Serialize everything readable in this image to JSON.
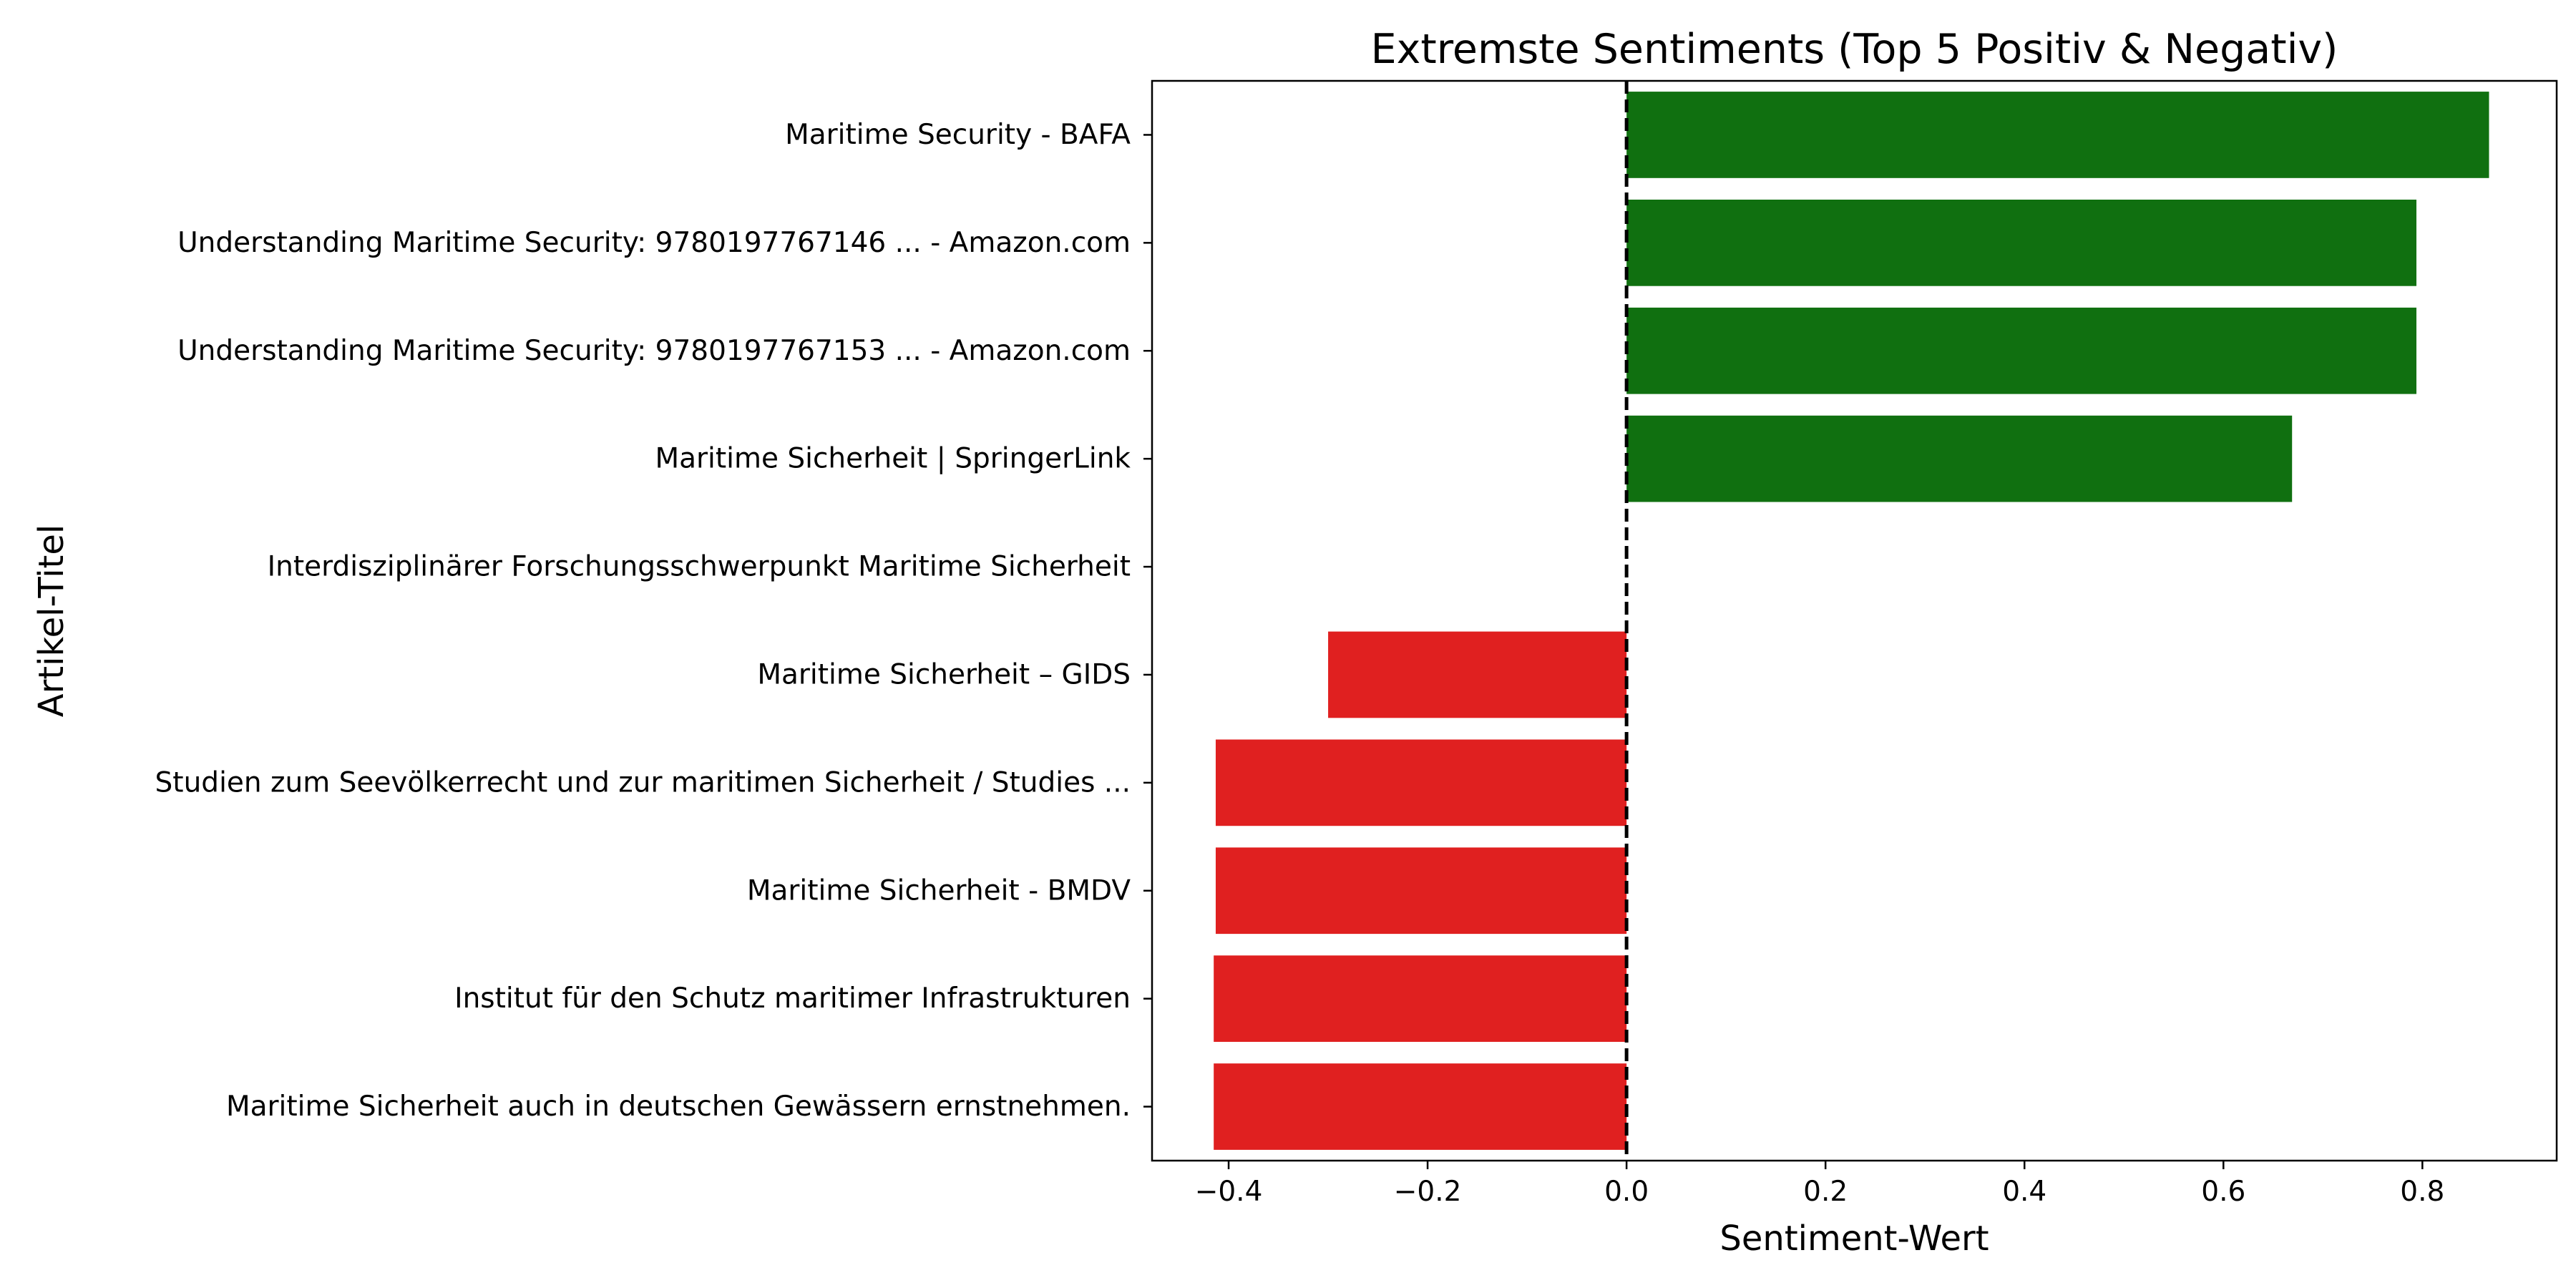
{
  "chart_data": {
    "type": "bar",
    "orientation": "horizontal",
    "title": "Extremste Sentiments (Top 5 Positiv & Negativ)",
    "xlabel": "Sentiment-Wert",
    "ylabel": "Artikel-Titel",
    "xlim": [
      -0.477,
      0.935
    ],
    "x_ticks": [
      -0.4,
      -0.2,
      0.0,
      0.2,
      0.4,
      0.6,
      0.8
    ],
    "x_tick_labels": [
      "−0.4",
      "−0.2",
      "0.0",
      "0.2",
      "0.4",
      "0.6",
      "0.8"
    ],
    "reference_line": 0,
    "grid": false,
    "legend": "none",
    "colors": {
      "positive": "#107010",
      "negative": "#e02020",
      "reference": "#000000"
    },
    "categories": [
      "Maritime Security - BAFA",
      "Understanding Maritime Security: 9780197767146 ... - Amazon.com",
      "Understanding Maritime Security: 9780197767153 ... - Amazon.com",
      "Maritime Sicherheit | SpringerLink",
      "Interdisziplinärer Forschungsschwerpunkt Maritime Sicherheit",
      "Maritime Sicherheit – GIDS",
      "Studien zum Seevölkerrecht und zur maritimen Sicherheit / Studies ...",
      "Maritime Sicherheit - BMDV",
      "Institut für den Schutz maritimer Infrastrukturen",
      "Maritime Sicherheit auch in deutschen Gewässern ernstnehmen."
    ],
    "values": [
      0.867,
      0.794,
      0.794,
      0.669,
      0.0,
      -0.3,
      -0.413,
      -0.413,
      -0.415,
      -0.415
    ]
  }
}
